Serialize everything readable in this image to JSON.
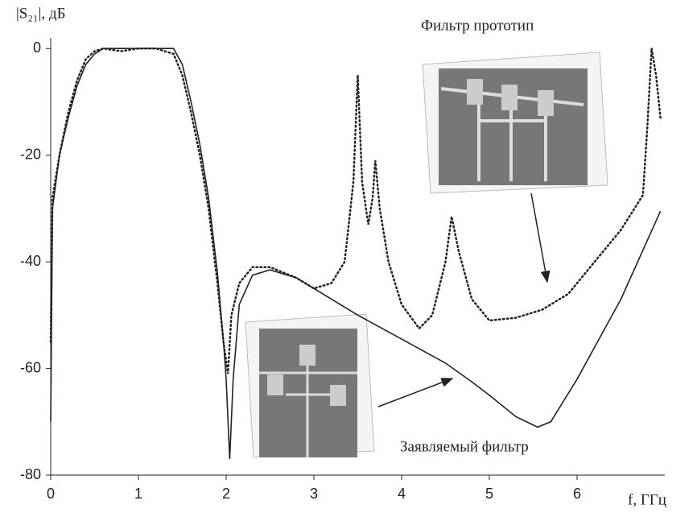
{
  "chart_data": {
    "type": "line",
    "y_label": "|S₂₁|, дБ",
    "x_label": "f, ГГц",
    "xlim": [
      0,
      7
    ],
    "ylim": [
      -80,
      2
    ],
    "xticks": [
      0,
      1,
      2,
      3,
      4,
      5,
      6
    ],
    "yticks": [
      -80,
      -60,
      -40,
      -20,
      0
    ],
    "series": [
      {
        "name": "Заявляемый фильтр",
        "style": "solid",
        "color": "#222222",
        "x": [
          0,
          0.02,
          0.1,
          0.2,
          0.3,
          0.4,
          0.5,
          0.6,
          0.8,
          1.0,
          1.2,
          1.4,
          1.5,
          1.6,
          1.7,
          1.8,
          1.9,
          1.97,
          2.0,
          2.04,
          2.08,
          2.15,
          2.3,
          2.5,
          2.8,
          3,
          3.5,
          4,
          4.5,
          4.8,
          5,
          5.3,
          5.55,
          5.7,
          6,
          6.5,
          6.95
        ],
        "values": [
          -70,
          -30,
          -20,
          -13,
          -7,
          -3,
          -1,
          0,
          0,
          0,
          0,
          0,
          -3,
          -10,
          -18,
          -28,
          -42,
          -55,
          -62,
          -77,
          -62,
          -48,
          -42.5,
          -41.5,
          -43,
          -45,
          -50,
          -54.5,
          -59,
          -62.5,
          -65,
          -69,
          -71,
          -70,
          -62,
          -47,
          -30.5
        ]
      },
      {
        "name": "Фильтр прототип",
        "style": "dotted",
        "color": "#222222",
        "x": [
          0,
          0.02,
          0.1,
          0.2,
          0.3,
          0.4,
          0.5,
          0.6,
          0.8,
          1.0,
          1.2,
          1.4,
          1.5,
          1.6,
          1.7,
          1.8,
          1.9,
          1.97,
          2.02,
          2.06,
          2.15,
          2.3,
          2.5,
          2.8,
          3,
          3.2,
          3.35,
          3.45,
          3.5,
          3.55,
          3.62,
          3.67,
          3.7,
          3.75,
          3.85,
          4.0,
          4.2,
          4.35,
          4.5,
          4.57,
          4.65,
          4.8,
          5.0,
          5.3,
          5.6,
          5.9,
          6.2,
          6.5,
          6.75,
          6.8,
          6.85,
          6.9,
          6.95
        ],
        "values": [
          -55,
          -28,
          -20,
          -12,
          -6,
          -2,
          -0.5,
          0,
          -0.5,
          0,
          0,
          -1,
          -5,
          -12,
          -20,
          -30,
          -44,
          -55,
          -61,
          -50,
          -44,
          -41,
          -41,
          -43,
          -45,
          -44,
          -40,
          -25,
          -5,
          -25,
          -33,
          -28,
          -21,
          -30,
          -40,
          -48,
          -52.5,
          -50,
          -40,
          -31.5,
          -38,
          -47,
          -51,
          -50.5,
          -49,
          -46,
          -40,
          -34,
          -27.5,
          -15,
          0,
          -5,
          -13
        ]
      }
    ]
  }
}
